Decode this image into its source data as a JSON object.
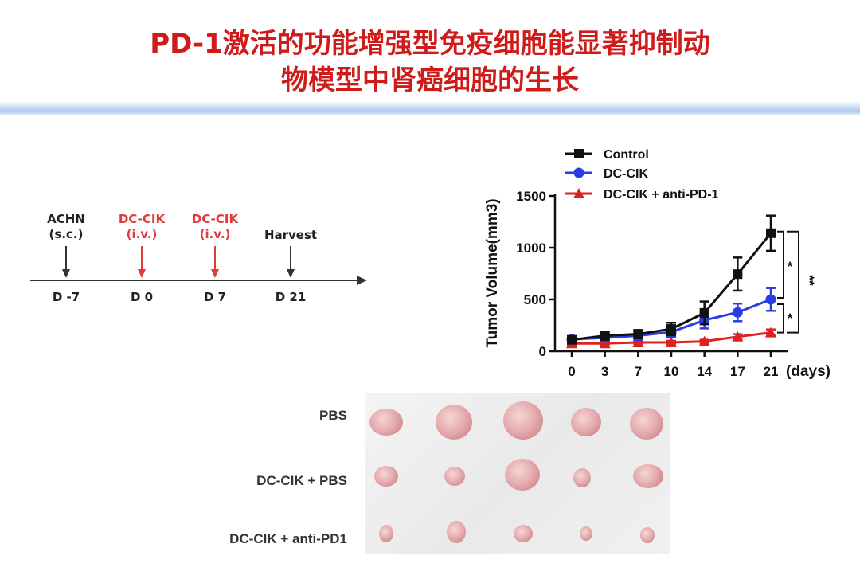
{
  "title": {
    "line1": "PD-1激活的功能增强型免疫细胞能显著抑制动",
    "line2": "物模型中肾癌细胞的生长"
  },
  "timeline": {
    "events": [
      {
        "line1": "ACHN",
        "line2": "(s.c.)",
        "day": "D -7",
        "color": "black"
      },
      {
        "line1": "DC-CIK",
        "line2": "(i.v.)",
        "day": "D 0",
        "color": "red"
      },
      {
        "line1": "DC-CIK",
        "line2": "(i.v.)",
        "day": "D 7",
        "color": "red"
      },
      {
        "line1": "Harvest",
        "line2": "",
        "day": "D 21",
        "color": "black"
      }
    ]
  },
  "chart_data": {
    "type": "line",
    "xlabel": "(days)",
    "ylabel": "Tumor Volume(mm3)",
    "categories": [
      "0",
      "3",
      "7",
      "10",
      "14",
      "17",
      "21"
    ],
    "ylim": [
      0,
      1500
    ],
    "yticks": [
      0,
      500,
      1000,
      1500
    ],
    "legend_position": "top",
    "series": [
      {
        "name": "Control",
        "color": "#111111",
        "marker": "square",
        "values": [
          110,
          150,
          165,
          215,
          370,
          745,
          1140
        ],
        "errors": [
          30,
          40,
          40,
          60,
          110,
          160,
          170
        ]
      },
      {
        "name": "DC-CIK",
        "color": "#2a3ce6",
        "marker": "circle",
        "values": [
          115,
          130,
          150,
          185,
          300,
          375,
          500
        ],
        "errors": [
          30,
          35,
          40,
          45,
          80,
          85,
          110
        ]
      },
      {
        "name": "DC-CIK + anti-PD-1",
        "color": "#e02020",
        "marker": "triangle",
        "values": [
          75,
          75,
          85,
          85,
          95,
          140,
          180
        ],
        "errors": [
          15,
          15,
          15,
          15,
          15,
          25,
          30
        ]
      }
    ],
    "annotations": [
      "*",
      "*",
      "**"
    ]
  },
  "photo": {
    "groups": [
      "PBS",
      "DC-CIK + PBS",
      "DC-CIK + anti-PD1"
    ]
  }
}
